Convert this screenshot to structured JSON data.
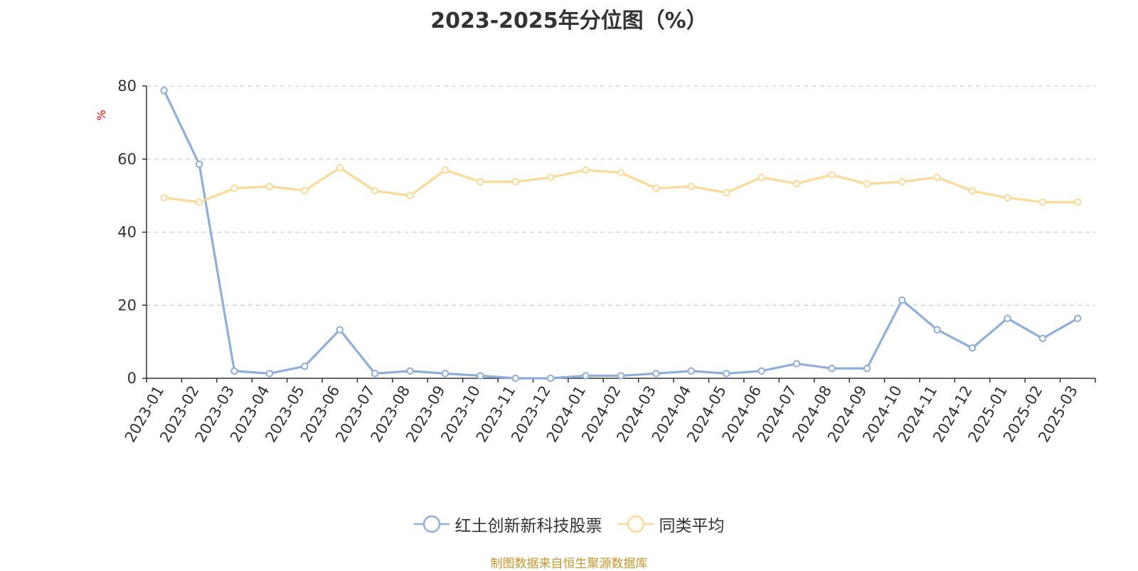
{
  "title": "2023-2025年分位图（%）",
  "y_unit": "%",
  "source": "制图数据来自恒生聚源数据库",
  "colors": {
    "series_1": "#8eaedb",
    "series_2": "#fcd996",
    "unit": "#ff0000",
    "source": "#c8952a",
    "grid": "#cccccc",
    "axis": "#333333"
  },
  "chart_data": {
    "type": "line",
    "title": "2023-2025年分位图（%）",
    "ylabel": "%",
    "ylim": [
      0,
      80
    ],
    "yticks": [
      0,
      20,
      40,
      60,
      80
    ],
    "grid": "horizontal dashed",
    "legend_position": "bottom",
    "categories": [
      "2023-01",
      "2023-02",
      "2023-03",
      "2023-04",
      "2023-05",
      "2023-06",
      "2023-07",
      "2023-08",
      "2023-09",
      "2023-10",
      "2023-11",
      "2023-12",
      "2024-01",
      "2024-02",
      "2024-03",
      "2024-04",
      "2024-05",
      "2024-06",
      "2024-07",
      "2024-08",
      "2024-09",
      "2024-10",
      "2024-11",
      "2024-12",
      "2025-01",
      "2025-02",
      "2025-03"
    ],
    "series": [
      {
        "name": "红土创新新科技股票",
        "values": [
          78.8,
          58.6,
          2.0,
          1.3,
          3.3,
          13.3,
          1.3,
          2.0,
          1.3,
          0.7,
          0.0,
          0.0,
          0.7,
          0.7,
          1.3,
          2.0,
          1.3,
          2.0,
          4.0,
          2.7,
          2.7,
          21.4,
          13.3,
          8.3,
          16.4,
          10.9,
          16.4
        ]
      },
      {
        "name": "同类平均",
        "values": [
          49.4,
          48.2,
          52.0,
          52.5,
          51.4,
          57.6,
          51.3,
          50.0,
          57.0,
          53.8,
          53.8,
          55.0,
          57.0,
          56.3,
          52.0,
          52.5,
          50.8,
          55.0,
          53.3,
          55.7,
          53.2,
          53.8,
          55.0,
          51.3,
          49.4,
          48.2,
          48.2
        ]
      }
    ]
  }
}
